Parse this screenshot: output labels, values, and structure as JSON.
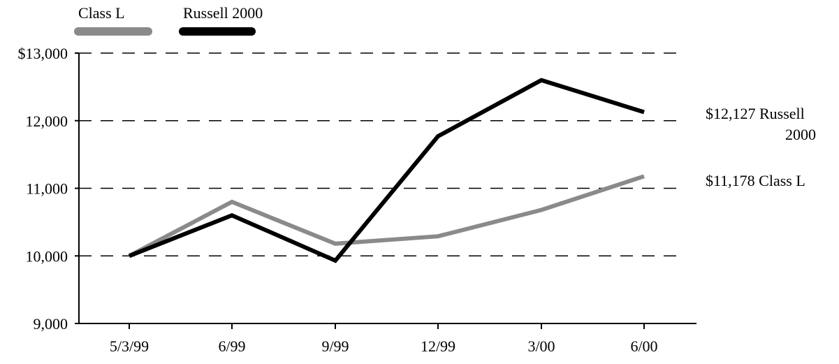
{
  "chart_data": {
    "type": "line",
    "title": "",
    "xlabel": "",
    "ylabel": "",
    "categories": [
      "5/3/99",
      "6/99",
      "9/99",
      "12/99",
      "3/00",
      "6/00"
    ],
    "y_ticks": [
      "$13,000",
      "12,000",
      "11,000",
      "10,000",
      "9,000"
    ],
    "y_tick_values": [
      13000,
      12000,
      11000,
      10000,
      9000
    ],
    "ylim": [
      9000,
      13000
    ],
    "grid": "dashed horizontal lines at 10,000, 11,000, 12,000, 13,000",
    "legend_placement": "top-left",
    "series": [
      {
        "name": "Class L",
        "color": "#8a8a8a",
        "values": [
          10000,
          10800,
          10180,
          10290,
          10680,
          11178
        ],
        "end_label_lines": [
          "$11,178 Class L"
        ]
      },
      {
        "name": "Russell 2000",
        "color": "#000000",
        "values": [
          10000,
          10600,
          9930,
          11770,
          12600,
          12127
        ],
        "end_label_lines": [
          "$12,127 Russell",
          "2000"
        ]
      }
    ]
  }
}
